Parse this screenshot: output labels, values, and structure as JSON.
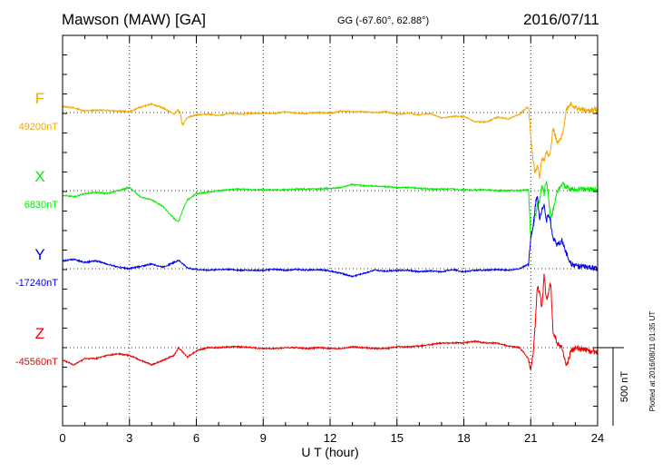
{
  "header": {
    "station": "Mawson (MAW)  [GA]",
    "coords": "GG (-67.60°,  62.88°)",
    "date": "2016/07/11"
  },
  "side_note": "Plotted at 2016/08/11 01:35 UT",
  "scale_bar": {
    "label": "500 nT",
    "value_nT": 500
  },
  "chart_data": {
    "type": "line",
    "xlabel": "U T (hour)",
    "xlim": [
      0,
      24
    ],
    "x_ticks": [
      0,
      3,
      6,
      9,
      12,
      15,
      18,
      21,
      24
    ],
    "x_tick_labels": [
      "0",
      "3",
      "6",
      "9",
      "12",
      "15",
      "18",
      "21",
      "24"
    ],
    "grid": "dotted",
    "series": [
      {
        "name": "F",
        "baseline_label": "49200nT",
        "baseline_nT": 49200,
        "color": "#f5a800",
        "x": [
          0,
          0.5,
          1,
          1.5,
          2,
          2.5,
          3,
          3.5,
          4,
          4.5,
          5,
          5.2,
          5.4,
          5.6,
          6,
          6.5,
          7,
          7.5,
          8,
          8.5,
          9,
          9.5,
          10,
          10.5,
          11,
          11.5,
          12,
          12.5,
          13,
          13.5,
          14,
          14.5,
          15,
          15.5,
          16,
          16.5,
          17,
          17.5,
          18,
          18.5,
          19,
          19.5,
          20,
          20.5,
          20.9,
          21.0,
          21.1,
          21.2,
          21.3,
          21.4,
          21.5,
          21.6,
          21.7,
          21.8,
          21.9,
          22.0,
          22.2,
          22.4,
          22.6,
          22.8,
          23.0,
          23.5,
          24
        ],
        "values": [
          40,
          30,
          10,
          15,
          15,
          10,
          5,
          35,
          55,
          30,
          -10,
          20,
          -80,
          -30,
          -15,
          -10,
          -20,
          -5,
          -10,
          -5,
          -5,
          -5,
          5,
          -5,
          -5,
          0,
          -5,
          10,
          5,
          5,
          0,
          5,
          -10,
          -5,
          -15,
          -5,
          -35,
          -25,
          -25,
          -60,
          -60,
          -30,
          -40,
          -10,
          40,
          -150,
          -300,
          -380,
          -350,
          -420,
          -290,
          -310,
          -250,
          -270,
          -240,
          -100,
          -200,
          -160,
          20,
          60,
          30,
          10,
          20
        ]
      },
      {
        "name": "X",
        "baseline_label": "6830nT",
        "baseline_nT": 6830,
        "color": "#00ee00",
        "x": [
          0,
          0.5,
          1,
          1.5,
          2,
          2.5,
          3,
          3.5,
          4,
          4.5,
          5,
          5.2,
          5.4,
          5.6,
          6,
          6.5,
          7,
          7.5,
          8,
          8.5,
          9,
          9.5,
          10,
          10.5,
          11,
          11.5,
          12,
          12.5,
          13,
          13.5,
          14,
          14.5,
          15,
          15.5,
          16,
          16.5,
          17,
          17.5,
          18,
          18.5,
          19,
          19.5,
          20,
          20.5,
          20.9,
          21.0,
          21.1,
          21.2,
          21.3,
          21.4,
          21.5,
          21.6,
          21.7,
          21.8,
          21.9,
          22.0,
          22.2,
          22.4,
          22.6,
          22.8,
          23.0,
          23.5,
          24
        ],
        "values": [
          -30,
          -40,
          -20,
          -10,
          -20,
          0,
          20,
          -40,
          -60,
          -100,
          -180,
          -200,
          -120,
          -60,
          -20,
          -10,
          0,
          5,
          10,
          5,
          5,
          5,
          5,
          10,
          10,
          10,
          15,
          20,
          40,
          30,
          30,
          25,
          20,
          20,
          15,
          10,
          10,
          10,
          5,
          5,
          5,
          0,
          0,
          0,
          5,
          -300,
          -240,
          -160,
          -100,
          -60,
          40,
          -20,
          60,
          -40,
          -200,
          -120,
          0,
          40,
          20,
          10,
          5,
          10,
          5
        ]
      },
      {
        "name": "Y",
        "baseline_label": "-17240nT",
        "baseline_nT": -17240,
        "color": "#0000ee",
        "x": [
          0,
          0.5,
          1,
          1.5,
          2,
          2.5,
          3,
          3.5,
          4,
          4.5,
          5,
          5.2,
          5.4,
          5.6,
          6,
          6.5,
          7,
          7.5,
          8,
          8.5,
          9,
          9.5,
          10,
          10.5,
          11,
          11.5,
          12,
          12.5,
          13,
          13.5,
          14,
          14.5,
          15,
          15.5,
          16,
          16.5,
          17,
          17.5,
          18,
          18.5,
          19,
          19.5,
          20,
          20.5,
          20.9,
          21.0,
          21.1,
          21.2,
          21.3,
          21.4,
          21.5,
          21.6,
          21.7,
          21.8,
          21.9,
          22.0,
          22.2,
          22.4,
          22.6,
          22.8,
          23.0,
          23.5,
          24
        ],
        "values": [
          50,
          60,
          40,
          50,
          30,
          10,
          0,
          15,
          30,
          10,
          40,
          55,
          30,
          5,
          -5,
          -10,
          -5,
          -5,
          -10,
          -10,
          -10,
          -5,
          -10,
          -5,
          -10,
          -5,
          -15,
          -30,
          -50,
          -30,
          -10,
          -15,
          -10,
          -10,
          -20,
          -15,
          -20,
          -5,
          -20,
          -10,
          -10,
          -5,
          -10,
          0,
          30,
          200,
          250,
          400,
          480,
          300,
          380,
          420,
          300,
          360,
          280,
          200,
          150,
          180,
          100,
          30,
          20,
          10,
          0
        ]
      },
      {
        "name": "Z",
        "baseline_label": "-45560nT",
        "baseline_nT": -45560,
        "color": "#ee0000",
        "x": [
          0,
          0.5,
          1,
          1.5,
          2,
          2.5,
          3,
          3.5,
          4,
          4.5,
          5,
          5.2,
          5.4,
          5.6,
          6,
          6.5,
          7,
          7.5,
          8,
          8.5,
          9,
          9.5,
          10,
          10.5,
          11,
          11.5,
          12,
          12.5,
          13,
          13.5,
          14,
          14.5,
          15,
          15.5,
          16,
          16.5,
          17,
          17.5,
          18,
          18.5,
          19,
          19.5,
          20,
          20.5,
          20.9,
          21.0,
          21.1,
          21.2,
          21.3,
          21.4,
          21.5,
          21.6,
          21.7,
          21.8,
          21.9,
          22.0,
          22.2,
          22.4,
          22.6,
          22.8,
          23.0,
          23.5,
          24
        ],
        "values": [
          -80,
          -110,
          -70,
          -70,
          -50,
          -40,
          -50,
          -80,
          -110,
          -80,
          -50,
          0,
          -30,
          -60,
          -20,
          0,
          0,
          5,
          5,
          0,
          -5,
          -5,
          0,
          0,
          -5,
          0,
          -5,
          -5,
          5,
          0,
          -5,
          -5,
          5,
          5,
          10,
          20,
          30,
          30,
          30,
          40,
          30,
          30,
          10,
          0,
          -70,
          -150,
          -40,
          150,
          400,
          350,
          260,
          470,
          300,
          360,
          420,
          100,
          20,
          0,
          -120,
          -20,
          0,
          -20,
          -30
        ]
      }
    ]
  }
}
